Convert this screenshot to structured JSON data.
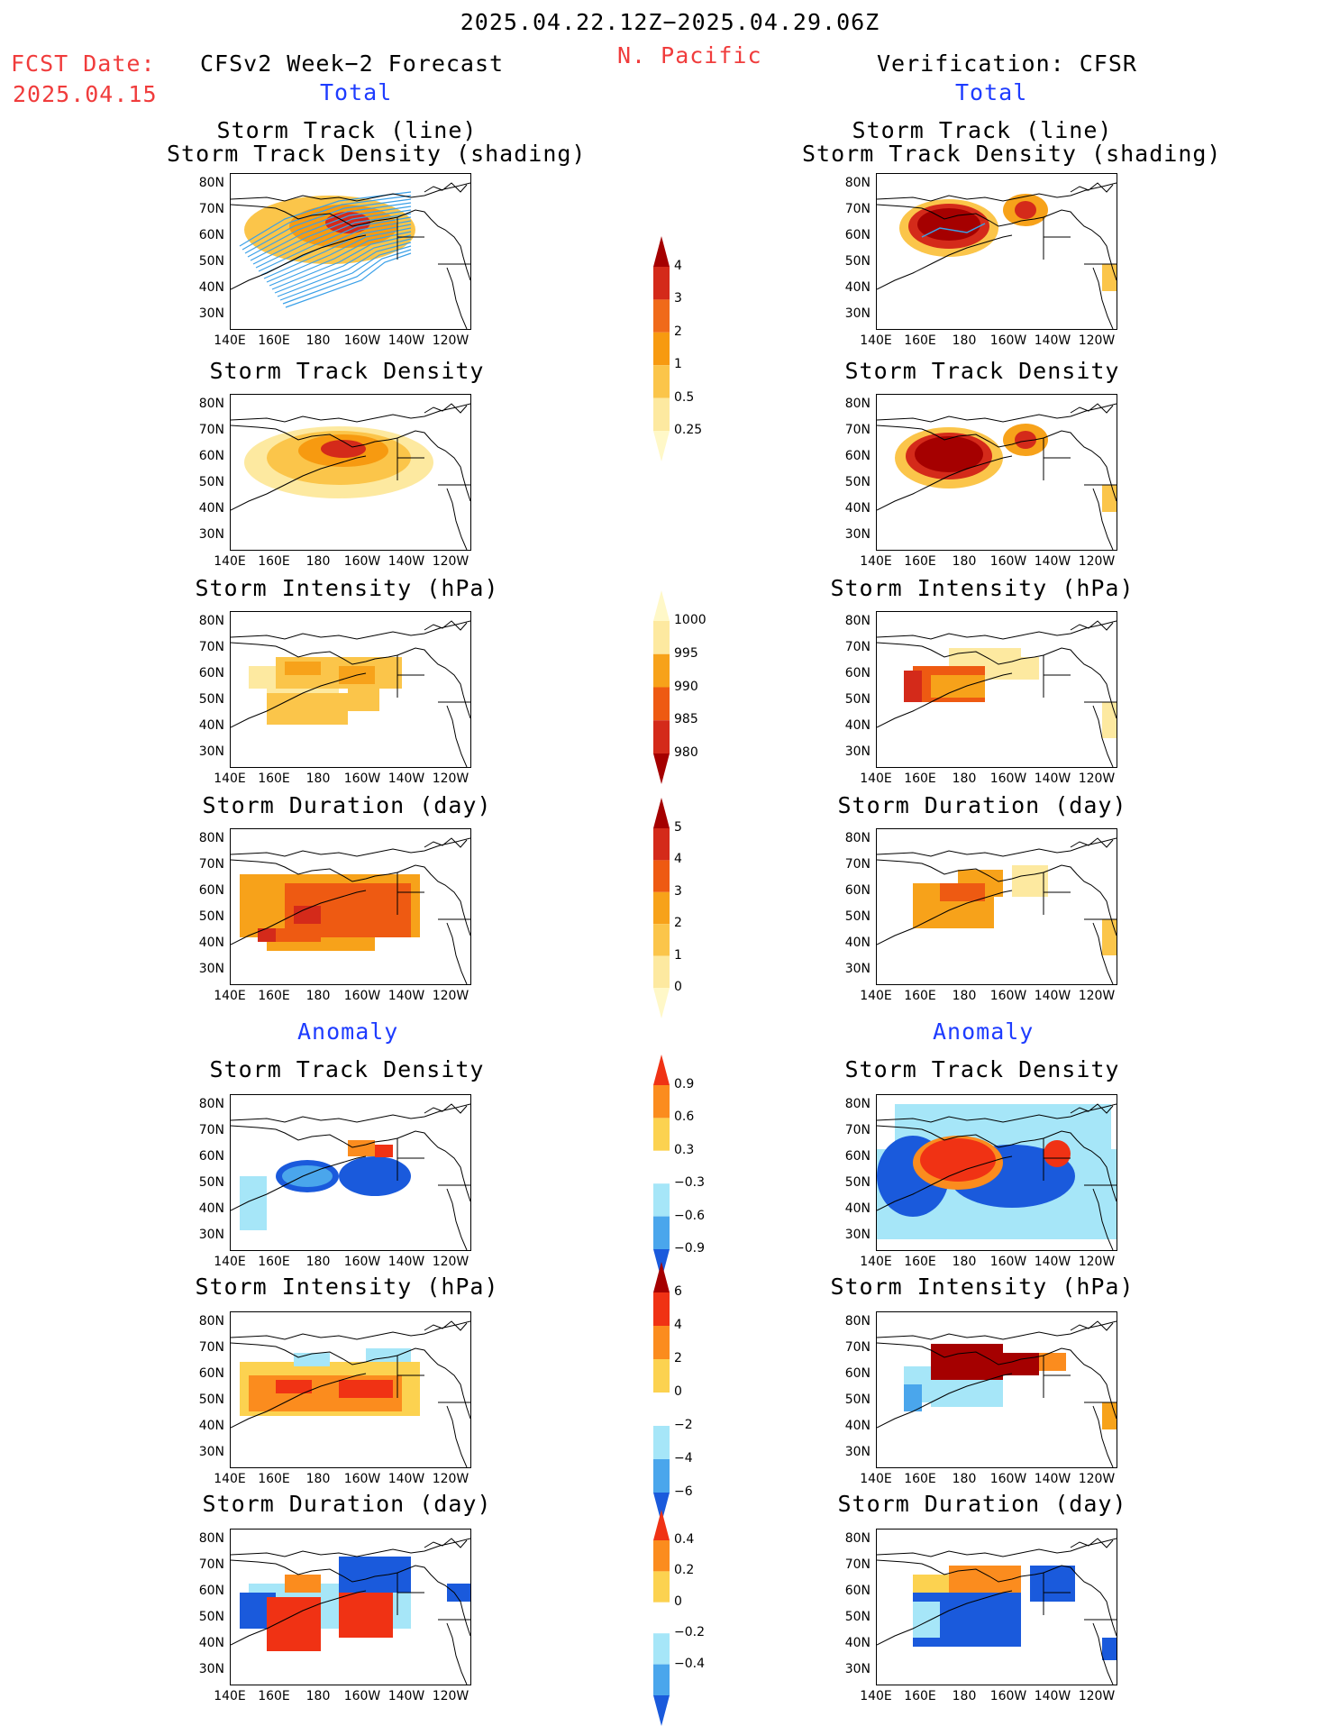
{
  "header": {
    "title": "2025.04.22.12Z−2025.04.29.06Z",
    "region": "N. Pacific",
    "fcst_label": "FCST Date:",
    "fcst_date": "2025.04.15",
    "left_title": "CFSv2 Week−2 Forecast",
    "right_title": "Verification: CFSR",
    "total_label": "Total",
    "anomaly_label": "Anomaly"
  },
  "axes": {
    "lat_ticks": [
      "80N",
      "70N",
      "60N",
      "50N",
      "40N",
      "30N"
    ],
    "lon_ticks": [
      "140E",
      "160E",
      "180",
      "160W",
      "140W",
      "120W"
    ]
  },
  "panels": {
    "track": [
      "Storm Track (line)",
      "Storm Track Density (shading)"
    ],
    "density": "Storm Track Density",
    "intensity": "Storm Intensity (hPa)",
    "duration": "Storm Duration (day)"
  },
  "colorbars": {
    "density_total": {
      "labels": [
        "4",
        "3",
        "2",
        "1",
        "0.5",
        "0.25"
      ],
      "colors": [
        "#a50000",
        "#d42a1a",
        "#f06a1a",
        "#f79a10",
        "#fbc54a",
        "#fde9a0",
        "#fff8c8"
      ]
    },
    "intensity_total": {
      "labels": [
        "1000",
        "995",
        "990",
        "985",
        "980"
      ],
      "colors": [
        "#fff8c8",
        "#fde9a0",
        "#f7a21a",
        "#ee5a12",
        "#d42a1a",
        "#a50000"
      ]
    },
    "duration_total": {
      "labels": [
        "5",
        "4",
        "3",
        "2",
        "1",
        "0"
      ],
      "colors": [
        "#a50000",
        "#d42a1a",
        "#ee5a12",
        "#f7a21a",
        "#fbc54a",
        "#fde9a0",
        "#fff8c8"
      ]
    },
    "density_anom": {
      "labels": [
        "0.9",
        "0.6",
        "0.3",
        "−0.3",
        "−0.6",
        "−0.9"
      ],
      "colors": [
        "#f03214",
        "#fb8c1e",
        "#fcd250",
        "#ffffff",
        "#a6e6f8",
        "#4aa6ec",
        "#1a5adc"
      ]
    },
    "intensity_anom": {
      "labels": [
        "6",
        "4",
        "2",
        "0",
        "−2",
        "−4",
        "−6"
      ],
      "colors": [
        "#a50000",
        "#f03214",
        "#fb8c1e",
        "#fcd250",
        "#ffffff",
        "#a6e6f8",
        "#4aa6ec",
        "#1a5adc"
      ]
    },
    "duration_anom": {
      "labels": [
        "0.4",
        "0.2",
        "0",
        "−0.2",
        "−0.4"
      ],
      "colors": [
        "#f03214",
        "#fb8c1e",
        "#fcd250",
        "#ffffff",
        "#a6e6f8",
        "#4aa6ec",
        "#1a5adc"
      ]
    }
  }
}
